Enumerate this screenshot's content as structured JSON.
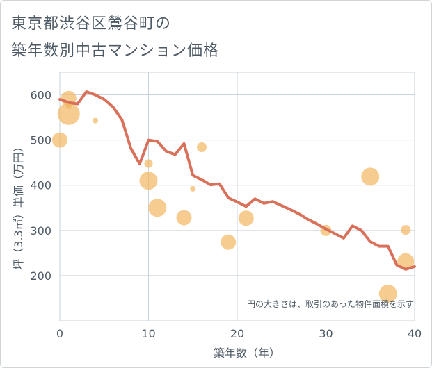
{
  "title_line1": "東京都渋谷区鶯谷町の",
  "title_line2": "築年数別中古マンション価格",
  "colors": {
    "line": "#d9705a",
    "bubble": "#f2b661",
    "grid": "#c9d3db",
    "text": "#4d5a66"
  },
  "chart_data": {
    "type": "scatter",
    "xlabel": "築年数（年）",
    "ylabel": "坪（3.3㎡）単価（万円）",
    "xlim": [
      0,
      40
    ],
    "ylim": [
      100,
      650
    ],
    "xticks": [
      "0",
      "10",
      "20",
      "30",
      "40"
    ],
    "yticks": [
      "200",
      "300",
      "400",
      "500",
      "600"
    ],
    "xtick_values": [
      0,
      10,
      20,
      30,
      40
    ],
    "ytick_values": [
      200,
      300,
      400,
      500,
      600
    ],
    "grid": true,
    "annotation": "円の大きさは、取引のあった物件面積を示す",
    "line": {
      "x": [
        0,
        1,
        2,
        3,
        4,
        5,
        6,
        7,
        8,
        9,
        10,
        11,
        12,
        13,
        14,
        15,
        16,
        17,
        18,
        19,
        20,
        21,
        22,
        23,
        24,
        25,
        26,
        27,
        28,
        29,
        30,
        31,
        32,
        33,
        34,
        35,
        36,
        37,
        38,
        39,
        40
      ],
      "y": [
        590,
        583,
        580,
        607,
        600,
        590,
        573,
        545,
        482,
        447,
        500,
        497,
        475,
        468,
        492,
        422,
        412,
        401,
        403,
        372,
        363,
        353,
        370,
        360,
        364,
        355,
        346,
        336,
        324,
        314,
        303,
        293,
        283,
        310,
        300,
        275,
        265,
        265,
        223,
        214,
        220
      ]
    },
    "bubbles": [
      {
        "x": 0,
        "y": 500,
        "size": 11
      },
      {
        "x": 1,
        "y": 592,
        "size": 11
      },
      {
        "x": 1,
        "y": 558,
        "size": 16
      },
      {
        "x": 1,
        "y": 575,
        "size": 4
      },
      {
        "x": 4,
        "y": 543,
        "size": 4
      },
      {
        "x": 10,
        "y": 448,
        "size": 6
      },
      {
        "x": 10,
        "y": 410,
        "size": 13
      },
      {
        "x": 11,
        "y": 350,
        "size": 13
      },
      {
        "x": 14,
        "y": 328,
        "size": 11
      },
      {
        "x": 15,
        "y": 392,
        "size": 4
      },
      {
        "x": 16,
        "y": 484,
        "size": 7
      },
      {
        "x": 19,
        "y": 274,
        "size": 11
      },
      {
        "x": 21,
        "y": 327,
        "size": 11
      },
      {
        "x": 30,
        "y": 300,
        "size": 8
      },
      {
        "x": 35,
        "y": 419,
        "size": 13
      },
      {
        "x": 37,
        "y": 160,
        "size": 13
      },
      {
        "x": 39,
        "y": 301,
        "size": 7
      },
      {
        "x": 39,
        "y": 231,
        "size": 12
      }
    ]
  }
}
